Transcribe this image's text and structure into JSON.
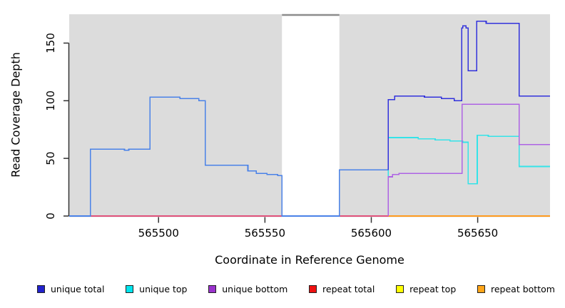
{
  "axes": {
    "x_label": "Coordinate in Reference Genome",
    "y_label": "Read Coverage Depth"
  },
  "legend": [
    {
      "label": "unique total",
      "color": "#2222CC"
    },
    {
      "label": "unique top",
      "color": "#00E5EE"
    },
    {
      "label": "unique bottom",
      "color": "#9A32CD"
    },
    {
      "label": "repeat total",
      "color": "#EE1111"
    },
    {
      "label": "repeat top",
      "color": "#FFFF00"
    },
    {
      "label": "repeat bottom",
      "color": "#FFA518"
    }
  ],
  "chart_data": {
    "type": "line",
    "style": "step",
    "title": "",
    "xlabel": "Coordinate in Reference Genome",
    "ylabel": "Read Coverage Depth",
    "xlim": [
      565458,
      565684
    ],
    "ylim": [
      0,
      175
    ],
    "x_ticks": [
      565500,
      565550,
      565600,
      565650
    ],
    "y_ticks": [
      0,
      50,
      100,
      150
    ],
    "grid": false,
    "legend_position": "bottom",
    "panel_background": "#DCDCDC",
    "axis_color": "#333333",
    "masked_region": {
      "x_start": 565558,
      "x_end": 565585,
      "fill": "#FFFFFF",
      "cap_color": "#8C8C8C"
    },
    "series": [
      {
        "name": "repeat total",
        "color": "#E0517B",
        "steps": [
          [
            565458,
            0
          ]
        ],
        "end_x": 565608
      },
      {
        "name": "unique total (left of gap)",
        "color": "#4A82E8",
        "steps": [
          [
            565458,
            0
          ],
          [
            565468,
            58
          ],
          [
            565484,
            57
          ],
          [
            565486,
            58
          ],
          [
            565496,
            103
          ],
          [
            565510,
            102
          ],
          [
            565519,
            100
          ],
          [
            565522,
            44
          ],
          [
            565542,
            39
          ],
          [
            565546,
            37
          ],
          [
            565551,
            36
          ],
          [
            565556,
            35
          ],
          [
            565558,
            0
          ],
          [
            565585,
            40
          ]
        ],
        "end_x": 565608
      },
      {
        "name": "repeat top",
        "color": "#F0F000",
        "steps": [
          [
            565608,
            0
          ]
        ],
        "end_x": 565684,
        "note": "hidden beneath repeat bottom"
      },
      {
        "name": "repeat bottom",
        "color": "#FF9A1E",
        "steps": [
          [
            565608,
            0
          ]
        ],
        "end_x": 565684
      },
      {
        "name": "unique top",
        "color": "#35E3E8",
        "steps": [
          [
            565608,
            0
          ],
          [
            565608,
            68
          ],
          [
            565622,
            67
          ],
          [
            565630,
            66
          ],
          [
            565637,
            65
          ],
          [
            565643,
            64
          ],
          [
            565645.5,
            28
          ],
          [
            565649.8,
            70
          ],
          [
            565655,
            69
          ],
          [
            565669.5,
            43
          ]
        ],
        "end_x": 565684
      },
      {
        "name": "unique bottom",
        "color": "#AE63E4",
        "steps": [
          [
            565608,
            0
          ],
          [
            565608,
            34
          ],
          [
            565610,
            36
          ],
          [
            565613,
            37
          ],
          [
            565642.7,
            97
          ],
          [
            565669.5,
            62
          ]
        ],
        "end_x": 565684
      },
      {
        "name": "unique total (right of gap)",
        "color": "#3232DC",
        "steps": [
          [
            565608,
            40
          ],
          [
            565608,
            101
          ],
          [
            565611,
            104
          ],
          [
            565625,
            103
          ],
          [
            565633,
            102
          ],
          [
            565639,
            100
          ],
          [
            565642.5,
            163
          ],
          [
            565643,
            165
          ],
          [
            565644.5,
            163
          ],
          [
            565645.5,
            126
          ],
          [
            565649.5,
            169
          ],
          [
            565654,
            167
          ],
          [
            565669.5,
            104
          ]
        ],
        "end_x": 565684
      }
    ]
  }
}
